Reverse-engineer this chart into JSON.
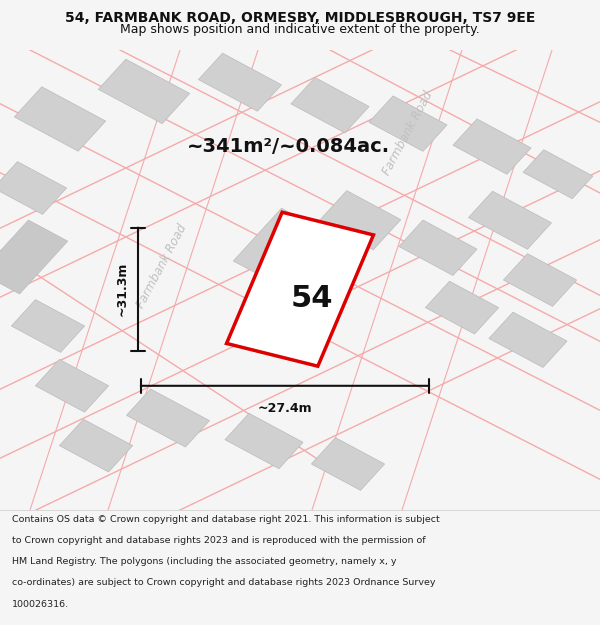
{
  "title_line1": "54, FARMBANK ROAD, ORMESBY, MIDDLESBROUGH, TS7 9EE",
  "title_line2": "Map shows position and indicative extent of the property.",
  "area_text": "~341m²/~0.084ac.",
  "label_54": "54",
  "dim_width": "~27.4m",
  "dim_height": "~31.3m",
  "road_label1": "Farmbank Road",
  "road_label2": "Farmbank Road",
  "footer_lines": [
    "Contains OS data © Crown copyright and database right 2021. This information is subject",
    "to Crown copyright and database rights 2023 and is reproduced with the permission of",
    "HM Land Registry. The polygons (including the associated geometry, namely x, y",
    "co-ordinates) are subject to Crown copyright and database rights 2023 Ordnance Survey",
    "100026316."
  ],
  "bg_color": "#f5f5f5",
  "plot_bg": "#ffffff",
  "building_fill": "#d0d0d0",
  "road_line_color": "#f5aaaa",
  "red_outline": "#dd0000",
  "property_fill": "#ffffff",
  "dim_line_color": "#111111",
  "text_color": "#111111",
  "road_text_color": "#c0c0c0",
  "footer_bg": "#ffffff"
}
